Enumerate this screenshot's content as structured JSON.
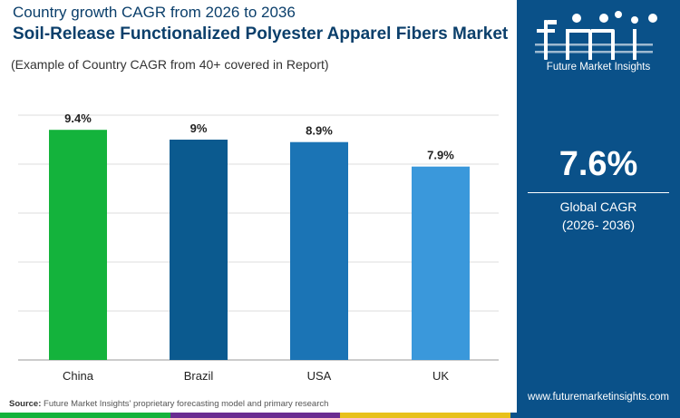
{
  "header": {
    "line1": "Country growth CAGR from 2026 to 2036",
    "title": "Soil-Release Functionalized Polyester Apparel Fibers Market",
    "subtitle": "(Example of Country CAGR from 40+ covered in Report)"
  },
  "chart_data": {
    "type": "bar",
    "categories": [
      "China",
      "Brazil",
      "USA",
      "UK"
    ],
    "values": [
      9.4,
      9,
      8.9,
      7.9
    ],
    "value_labels": [
      "9.4%",
      "9%",
      "8.9%",
      "7.9%"
    ],
    "bar_colors": [
      "#14b33c",
      "#0b5a8f",
      "#1b74b5",
      "#3a98db"
    ],
    "ylim": [
      0,
      10
    ],
    "grid": true,
    "xlabel": "",
    "ylabel": ""
  },
  "side_panel": {
    "brand": "fmi",
    "brand_tagline": "Future Market Insights",
    "global_value": "7.6%",
    "global_label": "Global CAGR",
    "global_period": "(2026- 2036)",
    "website": "www.futuremarketinsights.com",
    "background_color": "#0a5189"
  },
  "footer": {
    "source_label": "Source:",
    "source_text": "Future Market Insights' proprietary forecasting model and primary research"
  },
  "stripe_colors": [
    "#14b33c",
    "#6a2c91",
    "#e8c11c",
    "#0a5189"
  ]
}
